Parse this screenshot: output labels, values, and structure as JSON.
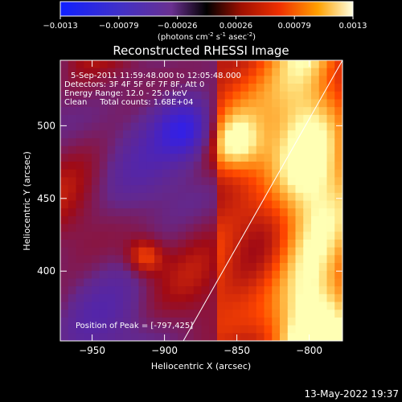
{
  "colorbar": {
    "ticks": [
      "-0.0013",
      "-0.00079",
      "-0.00026",
      "0.00026",
      "0.00079",
      "0.0013"
    ],
    "unit_main": "(photons cm",
    "unit_sup1": "-2",
    "unit_mid1": " s",
    "unit_sup2": "-1",
    "unit_mid2": " asec",
    "unit_sup3": "-2",
    "unit_end": ")"
  },
  "chart_data": {
    "type": "heatmap",
    "title": "Reconstructed RHESSI Image",
    "xlabel": "Heliocentric X (arcsec)",
    "ylabel": "Heliocentric Y (arcsec)",
    "xlim": [
      -972,
      -777
    ],
    "ylim": [
      352,
      545
    ],
    "x_ticks": [
      -950,
      -900,
      -850,
      -800
    ],
    "y_ticks": [
      400,
      450,
      500
    ],
    "x_tick_labels": [
      "−950",
      "−900",
      "−850",
      "−800"
    ],
    "y_tick_labels": [
      "400",
      "450",
      "500"
    ],
    "annotations": [
      "5-Sep-2011 11:59:48.000 to 12:05:48.000",
      "Detectors: 3F 4F 5F 6F 7F 8F, Att 0",
      "Energy Range: 12.0 - 25.0 keV",
      "Clean     Total counts: 1.68E+04",
      "Position of Peak = [-797,425]"
    ],
    "limb_line": [
      [
        -887,
        352
      ],
      [
        -777,
        545
      ]
    ],
    "peak": [
      -797,
      425
    ]
  },
  "timestamp": "13-May-2022 19:37"
}
